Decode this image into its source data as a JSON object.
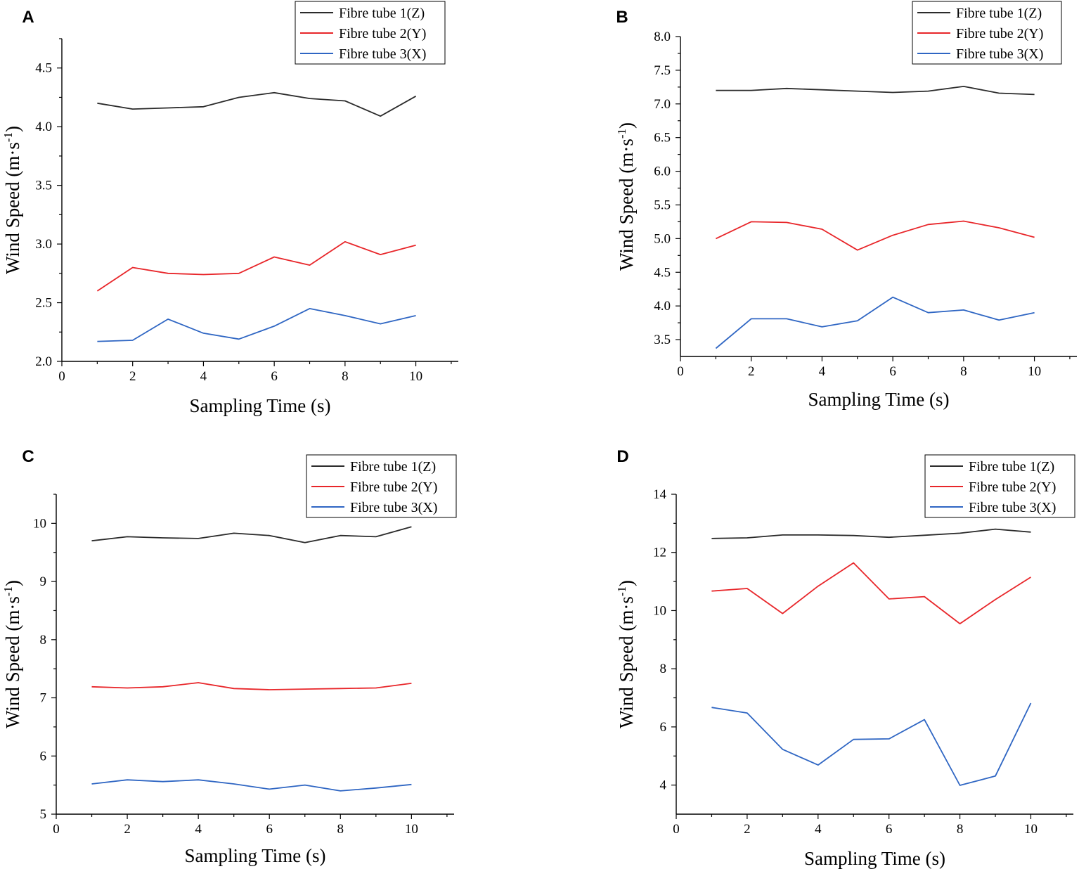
{
  "figure": {
    "x_label": "Sampling Time (s)",
    "y_label_main": "Wind Speed (m·s",
    "y_label_sup": "-1",
    "y_label_close": ")",
    "series_colors": [
      "#2b2b2b",
      "#e8262a",
      "#2f66c3"
    ]
  },
  "chart_data": [
    {
      "panel": "A",
      "type": "line",
      "xlabel": "Sampling Time (s)",
      "ylabel": "Wind Speed (m·s-1)",
      "xlim": [
        0,
        11.2
      ],
      "ylim": [
        2.0,
        4.75
      ],
      "xticks": [
        0,
        2,
        4,
        6,
        8,
        10
      ],
      "yticks": [
        2.0,
        2.5,
        3.0,
        3.5,
        4.0,
        4.5
      ],
      "ytick_labels": [
        "2.0",
        "2.5",
        "3.0",
        "3.5",
        "4.0",
        "4.5"
      ],
      "legend": "top-right",
      "x": [
        1,
        2,
        3,
        4,
        5,
        6,
        7,
        8,
        9,
        10
      ],
      "series": [
        {
          "name": "Fibre tube 1(Z)",
          "color": "#2b2b2b",
          "values": [
            4.2,
            4.15,
            4.16,
            4.17,
            4.25,
            4.29,
            4.24,
            4.22,
            4.09,
            4.26
          ]
        },
        {
          "name": "Fibre tube 2(Y)",
          "color": "#e8262a",
          "values": [
            2.6,
            2.8,
            2.75,
            2.74,
            2.75,
            2.89,
            2.82,
            3.02,
            2.91,
            2.99
          ]
        },
        {
          "name": "Fibre tube 3(X)",
          "color": "#2f66c3",
          "values": [
            2.17,
            2.18,
            2.36,
            2.24,
            2.19,
            2.3,
            2.45,
            2.39,
            2.32,
            2.39
          ]
        }
      ]
    },
    {
      "panel": "B",
      "type": "line",
      "xlabel": "Sampling Time (s)",
      "ylabel": "Wind Speed (m·s-1)",
      "xlim": [
        0,
        11.2
      ],
      "ylim": [
        3.25,
        8.0
      ],
      "xticks": [
        0,
        2,
        4,
        6,
        8,
        10
      ],
      "yticks": [
        3.5,
        4.0,
        4.5,
        5.0,
        5.5,
        6.0,
        6.5,
        7.0,
        7.5,
        8.0
      ],
      "ytick_labels": [
        "3.5",
        "4.0",
        "4.5",
        "5.0",
        "5.5",
        "6.0",
        "6.5",
        "7.0",
        "7.5",
        "8.0"
      ],
      "legend": "top-right",
      "x": [
        1,
        2,
        3,
        4,
        5,
        6,
        7,
        8,
        9,
        10
      ],
      "series": [
        {
          "name": "Fibre tube 1(Z)",
          "color": "#2b2b2b",
          "values": [
            7.2,
            7.2,
            7.23,
            7.21,
            7.19,
            7.17,
            7.19,
            7.26,
            7.16,
            7.14
          ]
        },
        {
          "name": "Fibre tube 2(Y)",
          "color": "#e8262a",
          "values": [
            5.0,
            5.25,
            5.24,
            5.14,
            4.83,
            5.05,
            5.21,
            5.26,
            5.16,
            5.02
          ]
        },
        {
          "name": "Fibre tube 3(X)",
          "color": "#2f66c3",
          "values": [
            3.37,
            3.81,
            3.81,
            3.69,
            3.78,
            4.13,
            3.9,
            3.94,
            3.79,
            3.9
          ]
        }
      ]
    },
    {
      "panel": "C",
      "type": "line",
      "xlabel": "Sampling Time (s)",
      "ylabel": "Wind Speed (m·s-1)",
      "xlim": [
        0,
        11.2
      ],
      "ylim": [
        5.0,
        10.5
      ],
      "xticks": [
        0,
        2,
        4,
        6,
        8,
        10
      ],
      "yticks": [
        5,
        6,
        7,
        8,
        9,
        10
      ],
      "ytick_labels": [
        "5",
        "6",
        "7",
        "8",
        "9",
        "10"
      ],
      "legend": "top-right",
      "x": [
        1,
        2,
        3,
        4,
        5,
        6,
        7,
        8,
        9,
        10
      ],
      "series": [
        {
          "name": "Fibre tube 1(Z)",
          "color": "#2b2b2b",
          "values": [
            9.7,
            9.77,
            9.75,
            9.74,
            9.83,
            9.79,
            9.67,
            9.79,
            9.77,
            9.94
          ]
        },
        {
          "name": "Fibre tube 2(Y)",
          "color": "#e8262a",
          "values": [
            7.19,
            7.17,
            7.19,
            7.26,
            7.16,
            7.14,
            7.15,
            7.16,
            7.17,
            7.25
          ]
        },
        {
          "name": "Fibre tube 3(X)",
          "color": "#2f66c3",
          "values": [
            5.52,
            5.59,
            5.56,
            5.59,
            5.52,
            5.43,
            5.5,
            5.4,
            5.45,
            5.51
          ]
        }
      ]
    },
    {
      "panel": "D",
      "type": "line",
      "xlabel": "Sampling Time (s)",
      "ylabel": "Wind Speed (m·s-1)",
      "xlim": [
        0,
        11.2
      ],
      "ylim": [
        3.0,
        14.0
      ],
      "xticks": [
        0,
        2,
        4,
        6,
        8,
        10
      ],
      "yticks": [
        4,
        6,
        8,
        10,
        12,
        14
      ],
      "ytick_labels": [
        "4",
        "6",
        "8",
        "10",
        "12",
        "14"
      ],
      "legend": "top-right",
      "x": [
        1,
        2,
        3,
        4,
        5,
        6,
        7,
        8,
        9,
        10
      ],
      "series": [
        {
          "name": "Fibre tube 1(Z)",
          "color": "#2b2b2b",
          "values": [
            12.48,
            12.5,
            12.6,
            12.6,
            12.58,
            12.52,
            12.59,
            12.66,
            12.8,
            12.7
          ]
        },
        {
          "name": "Fibre tube 2(Y)",
          "color": "#e8262a",
          "values": [
            10.67,
            10.76,
            9.9,
            10.84,
            11.64,
            10.4,
            10.48,
            9.55,
            10.38,
            11.15
          ]
        },
        {
          "name": "Fibre tube 3(X)",
          "color": "#2f66c3",
          "values": [
            6.67,
            6.48,
            5.23,
            4.69,
            5.57,
            5.59,
            6.25,
            3.99,
            4.31,
            6.82
          ]
        }
      ]
    }
  ]
}
